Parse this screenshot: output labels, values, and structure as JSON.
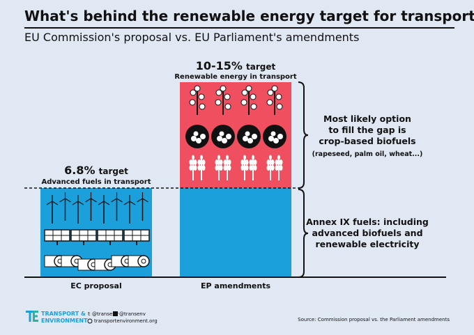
{
  "header": {
    "title": "What's behind the renewable energy target for transport?",
    "subtitle": "EU Commission's proposal vs. EU Parliament's amendments"
  },
  "bars": [
    {
      "label": "EC proposal",
      "target": "6.8%",
      "target_word": "target",
      "caption": "Advanced fuels in transport"
    },
    {
      "label": "EP amendments",
      "target": "10-15%",
      "target_word": "target",
      "caption": "Renewable energy in transport"
    }
  ],
  "annotations": [
    {
      "lines": [
        "Most likely option",
        "to fill the gap is",
        "crop-based biofuels"
      ],
      "note": "(rapeseed, palm oil, wheat...)"
    },
    {
      "lines": [
        "Annex IX fuels: including",
        "advanced biofuels and",
        "renewable electricity"
      ]
    }
  ],
  "footer": {
    "logo": [
      "TRANSPORT &",
      "ENVIRONMENT"
    ],
    "twitter": "@transenv",
    "facebook": "@transenv",
    "website": "transportenvironment.org",
    "source": "Source: Commission proposal vs. the Parliament amendments"
  }
}
